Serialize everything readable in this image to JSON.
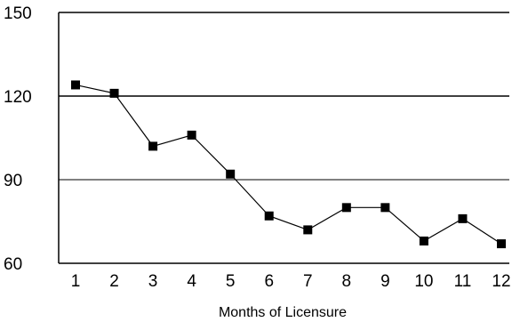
{
  "chart_data": {
    "type": "line",
    "title": "",
    "xlabel": "Months of Licensure",
    "ylabel": "",
    "x": [
      1,
      2,
      3,
      4,
      5,
      6,
      7,
      8,
      9,
      10,
      11,
      12
    ],
    "series": [
      {
        "values": [
          124,
          121,
          102,
          106,
          92,
          77,
          72,
          80,
          80,
          68,
          76,
          67
        ]
      }
    ],
    "xlim": [
      1,
      12
    ],
    "ylim": [
      60,
      150
    ],
    "yticks": [
      60,
      90,
      120,
      150
    ],
    "xticks": [
      1,
      2,
      3,
      4,
      5,
      6,
      7,
      8,
      9,
      10,
      11,
      12
    ],
    "gridlines_y": [
      90,
      120
    ],
    "legend": "none",
    "colors": {
      "line": "#000000",
      "marker": "#000000",
      "grid": "#000000"
    }
  }
}
